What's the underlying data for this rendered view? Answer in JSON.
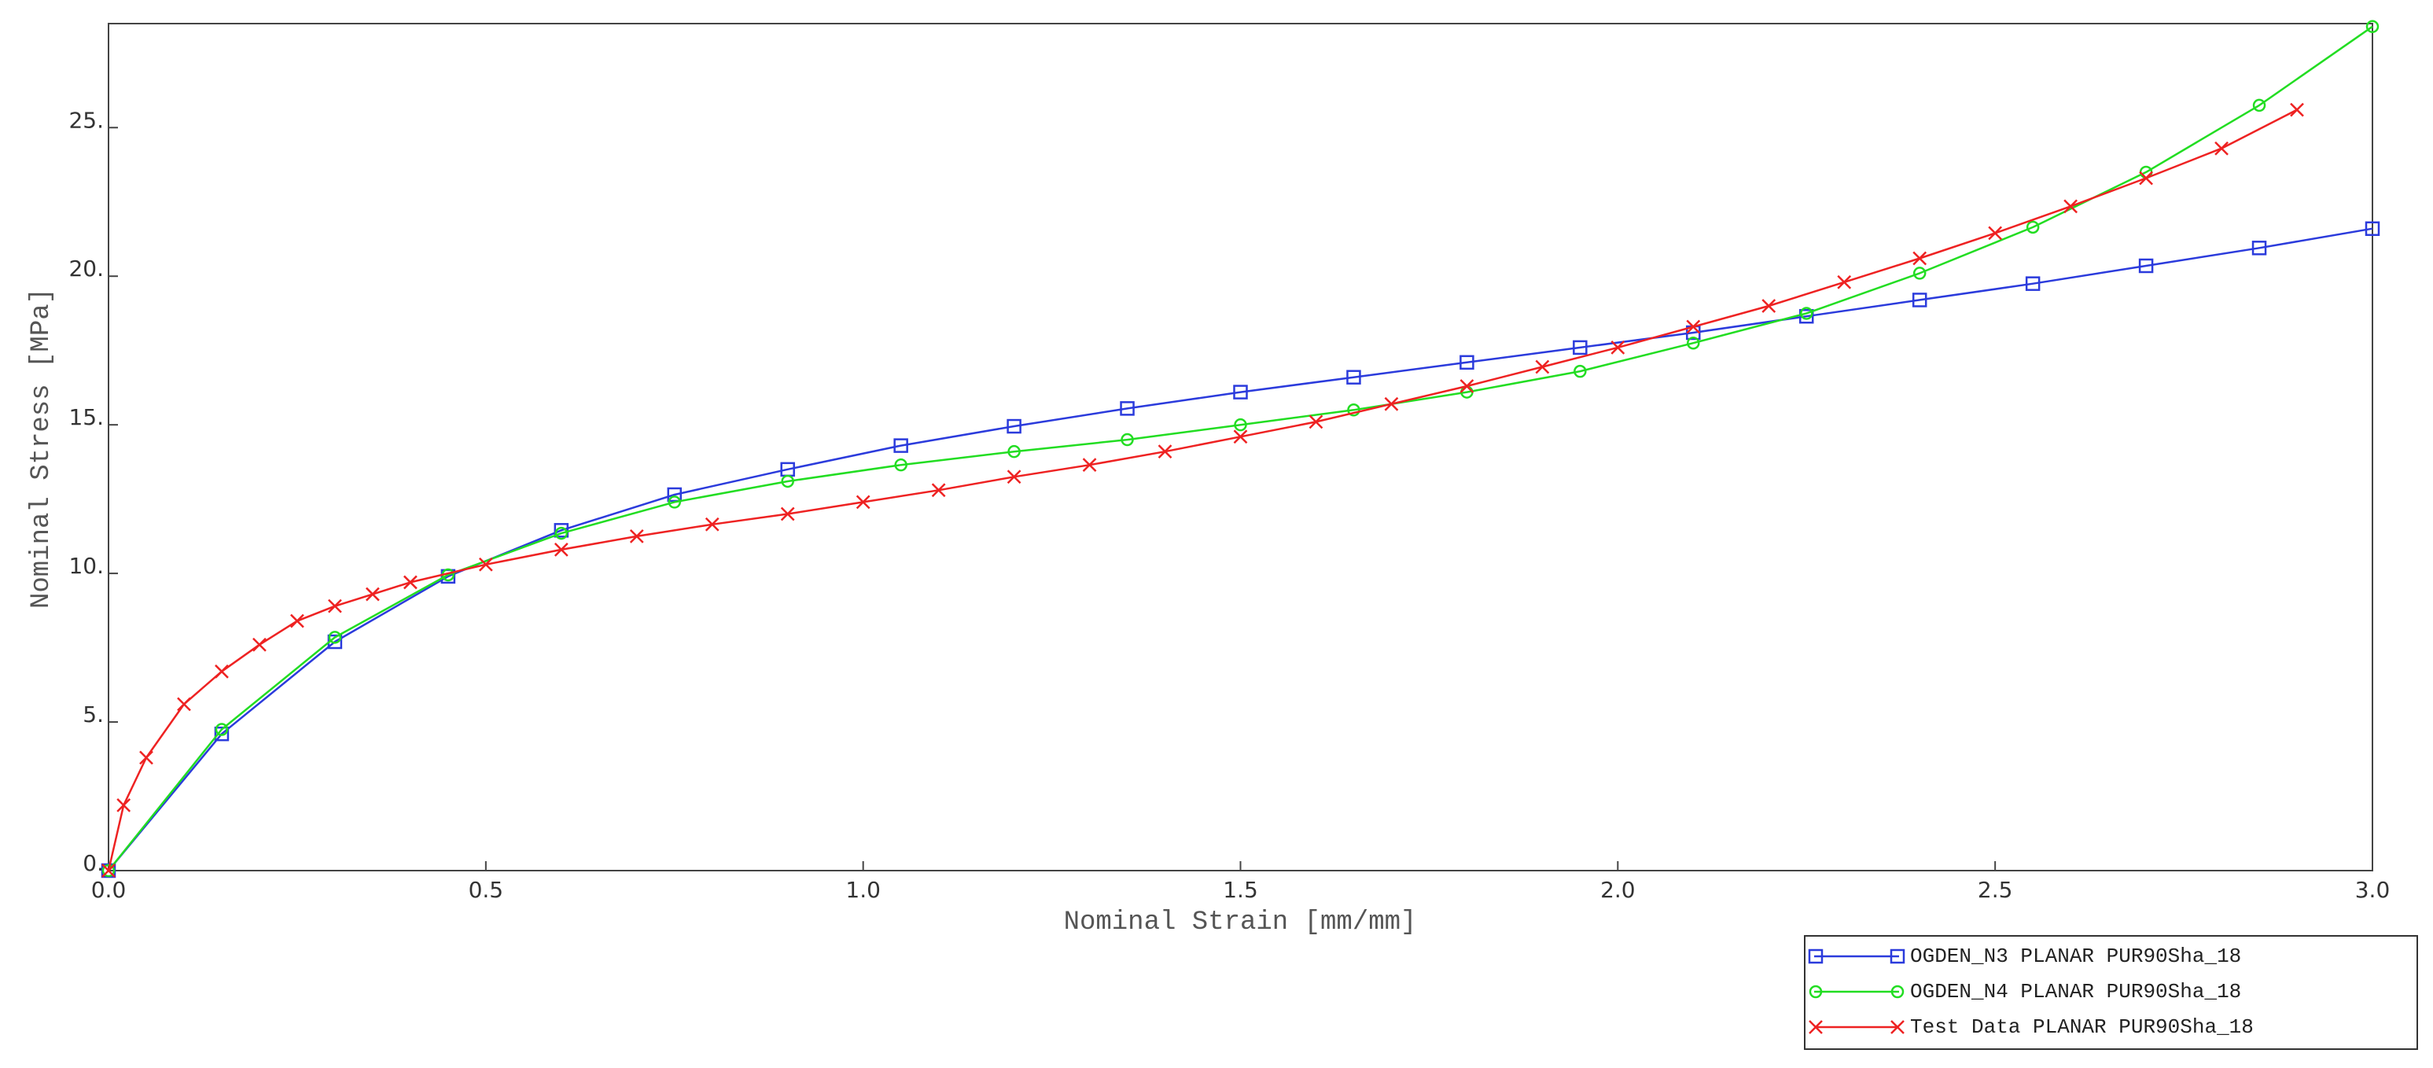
{
  "chart_data": {
    "type": "line",
    "x_label": "Nominal Strain [mm/mm]",
    "y_label": "Nominal Stress [MPa]",
    "xlim": [
      0,
      3.0
    ],
    "ylim": [
      0,
      28.5
    ],
    "xticks": [
      {
        "value": 0,
        "label": "0.0"
      },
      0.5,
      {
        "value": 1,
        "label": "1.0"
      },
      1.5,
      {
        "value": 2,
        "label": "2.0"
      },
      2.5,
      {
        "value": 3,
        "label": "3.0"
      }
    ],
    "yticks": [
      {
        "value": 0,
        "label": "0."
      },
      {
        "value": 5,
        "label": "5."
      },
      {
        "value": 10,
        "label": "10."
      },
      {
        "value": 15,
        "label": "15."
      },
      {
        "value": 20,
        "label": "20."
      },
      {
        "value": 25,
        "label": "25."
      }
    ],
    "grid": false,
    "legend_position": "bottom-right",
    "series": [
      {
        "name": "OGDEN_N3 PLANAR PUR90Sha_18",
        "color": "#2b3bdc",
        "marker": "square",
        "x": [
          0,
          0.15,
          0.3,
          0.45,
          0.6,
          0.75,
          0.9,
          1.05,
          1.2,
          1.35,
          1.5,
          1.65,
          1.8,
          1.95,
          2.1,
          2.25,
          2.4,
          2.55,
          2.7,
          2.85,
          3.0
        ],
        "values": [
          0,
          4.6,
          7.7,
          9.9,
          11.45,
          12.65,
          13.5,
          14.3,
          14.95,
          15.55,
          16.1,
          16.6,
          17.1,
          17.6,
          18.1,
          18.65,
          19.2,
          19.75,
          20.35,
          20.95,
          21.6
        ]
      },
      {
        "name": "OGDEN_N4 PLANAR PUR90Sha_18",
        "color": "#22dd22",
        "marker": "circle",
        "x": [
          0,
          0.15,
          0.3,
          0.45,
          0.6,
          0.75,
          0.9,
          1.05,
          1.2,
          1.35,
          1.5,
          1.65,
          1.8,
          1.95,
          2.1,
          2.25,
          2.4,
          2.55,
          2.7,
          2.85,
          3.0
        ],
        "values": [
          0,
          4.75,
          7.85,
          9.95,
          11.35,
          12.4,
          13.1,
          13.65,
          14.1,
          14.5,
          15.0,
          15.5,
          16.1,
          16.8,
          17.75,
          18.75,
          20.1,
          21.65,
          23.5,
          25.75,
          28.4
        ]
      },
      {
        "name": "Test Data PLANAR PUR90Sha_18",
        "color": "#ee2222",
        "marker": "cross",
        "x": [
          0,
          0.02,
          0.05,
          0.1,
          0.15,
          0.2,
          0.25,
          0.3,
          0.35,
          0.4,
          0.5,
          0.6,
          0.7,
          0.8,
          0.9,
          1.0,
          1.1,
          1.2,
          1.3,
          1.4,
          1.5,
          1.6,
          1.7,
          1.8,
          1.9,
          2.0,
          2.1,
          2.2,
          2.3,
          2.4,
          2.5,
          2.6,
          2.7,
          2.8,
          2.9
        ],
        "values": [
          0,
          2.2,
          3.8,
          5.6,
          6.7,
          7.6,
          8.4,
          8.9,
          9.3,
          9.7,
          10.3,
          10.8,
          11.25,
          11.65,
          12.0,
          12.4,
          12.8,
          13.25,
          13.65,
          14.1,
          14.6,
          15.1,
          15.7,
          16.3,
          16.95,
          17.6,
          18.3,
          19.0,
          19.8,
          20.6,
          21.45,
          22.35,
          23.3,
          24.3,
          25.6
        ]
      }
    ]
  }
}
